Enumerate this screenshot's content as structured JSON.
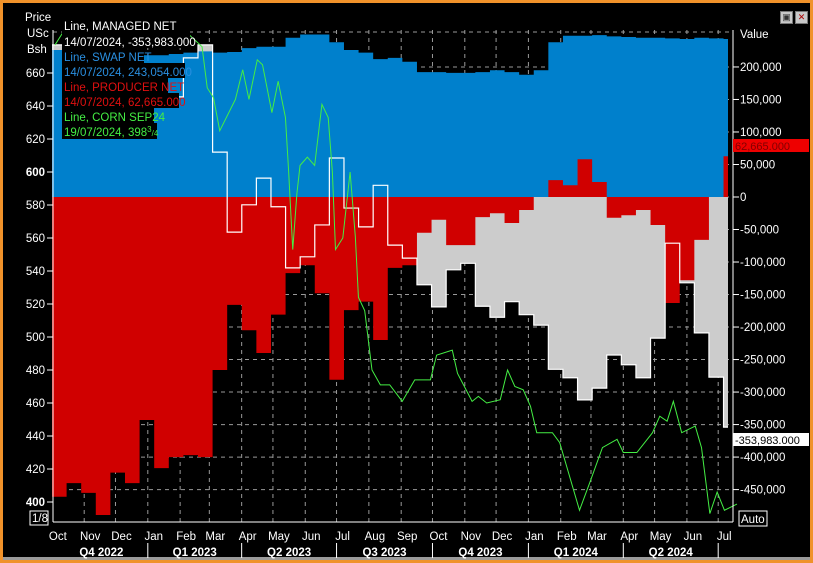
{
  "window": {
    "restore_icon": "restore-window-icon",
    "close_icon": "close-window-icon"
  },
  "legend": [
    {
      "label": "Line, MANAGED NET",
      "value": "14/07/2024, -353,983.000",
      "color": "#ffffff"
    },
    {
      "label": "Line, SWAP NET",
      "value": "14/07/2024, 243,054.000",
      "color": "#2a8fe0"
    },
    {
      "label": "Line, PRODUCER NET",
      "value": "14/07/2024, 62,665.000",
      "color": "#e01010"
    },
    {
      "label": "Line, CORN SEP24",
      "value": "19/07/2024, 398",
      "value_frac_num": "3",
      "value_frac_den": "4",
      "color": "#44ee44"
    }
  ],
  "left_axis": {
    "title_lines": [
      "Price",
      "USc",
      "Bsh"
    ],
    "scale_box": "1/8"
  },
  "right_axis": {
    "title": "Value",
    "auto_box": "Auto",
    "producer_last_label": "62,665.000",
    "managed_last_label": "-353,983.000"
  },
  "chart_data": {
    "type": "area",
    "title": "",
    "xlabel": "",
    "left_ylabel": "Price USc Bsh",
    "right_ylabel": "Value",
    "left_ylim": [
      395,
      690
    ],
    "right_ylim": [
      -500000,
      255000
    ],
    "x_range": [
      "2022-10-01",
      "2024-07-21"
    ],
    "grid": true,
    "legend_position": "top-left",
    "left_ticks": [
      "400",
      "420",
      "440",
      "460",
      "480",
      "500",
      "520",
      "540",
      "560",
      "580",
      "600",
      "620",
      "640",
      "660"
    ],
    "right_ticks": [
      {
        "v": 200000,
        "label": "200,000"
      },
      {
        "v": 150000,
        "label": "150,000"
      },
      {
        "v": 100000,
        "label": "100,000"
      },
      {
        "v": 50000,
        "label": "50,000"
      },
      {
        "v": 0,
        "label": "0"
      },
      {
        "v": -50000,
        "label": "-50,000"
      },
      {
        "v": -100000,
        "label": "-100,000"
      },
      {
        "v": -150000,
        "label": "-150,000"
      },
      {
        "v": -200000,
        "label": "-200,000"
      },
      {
        "v": -250000,
        "label": "-250,000"
      },
      {
        "v": -300000,
        "label": "-300,000"
      },
      {
        "v": -350000,
        "label": "-350,000"
      },
      {
        "v": -400000,
        "label": "-400,000"
      },
      {
        "v": -450000,
        "label": "-450,000"
      }
    ],
    "month_ticks": [
      {
        "d": "2022-10-01",
        "label": "Oct"
      },
      {
        "d": "2022-11-01",
        "label": "Nov"
      },
      {
        "d": "2022-12-01",
        "label": "Dec"
      },
      {
        "d": "2023-01-01",
        "label": "Jan"
      },
      {
        "d": "2023-02-01",
        "label": "Feb"
      },
      {
        "d": "2023-03-01",
        "label": "Mar"
      },
      {
        "d": "2023-04-01",
        "label": "Apr"
      },
      {
        "d": "2023-05-01",
        "label": "May"
      },
      {
        "d": "2023-06-01",
        "label": "Jun"
      },
      {
        "d": "2023-07-01",
        "label": "Jul"
      },
      {
        "d": "2023-08-01",
        "label": "Aug"
      },
      {
        "d": "2023-09-01",
        "label": "Sep"
      },
      {
        "d": "2023-10-01",
        "label": "Oct"
      },
      {
        "d": "2023-11-01",
        "label": "Nov"
      },
      {
        "d": "2023-12-01",
        "label": "Dec"
      },
      {
        "d": "2024-01-01",
        "label": "Jan"
      },
      {
        "d": "2024-02-01",
        "label": "Feb"
      },
      {
        "d": "2024-03-01",
        "label": "Mar"
      },
      {
        "d": "2024-04-01",
        "label": "Apr"
      },
      {
        "d": "2024-05-01",
        "label": "May"
      },
      {
        "d": "2024-06-01",
        "label": "Jun"
      },
      {
        "d": "2024-07-01",
        "label": "Jul"
      }
    ],
    "quarters": [
      {
        "start": "2022-10-01",
        "end": "2023-01-01",
        "label": "Q4 2022"
      },
      {
        "start": "2023-01-01",
        "end": "2023-04-01",
        "label": "Q1 2023"
      },
      {
        "start": "2023-04-01",
        "end": "2023-07-01",
        "label": "Q2 2023"
      },
      {
        "start": "2023-07-01",
        "end": "2023-10-01",
        "label": "Q3 2023"
      },
      {
        "start": "2023-10-01",
        "end": "2024-01-01",
        "label": "Q4 2023"
      },
      {
        "start": "2024-01-01",
        "end": "2024-04-01",
        "label": "Q1 2024"
      },
      {
        "start": "2024-04-01",
        "end": "2024-07-01",
        "label": "Q2 2024"
      }
    ],
    "positions_start": "2022-10-04",
    "positions_step_days": 14,
    "positions_units": "thousands of contracts",
    "series": [
      {
        "name": "MANAGED NET",
        "axis": "right",
        "style": "step-area",
        "color": "#ffffff",
        "fill": "#cccccc",
        "values": [
          234,
          229,
          226,
          218,
          211,
          195,
          180,
          157,
          154,
          214,
          234,
          69,
          -54,
          -12,
          29,
          -15,
          -109,
          -92,
          -43,
          60,
          -17,
          -46,
          18,
          -74,
          -94,
          -135,
          -169,
          -112,
          -102,
          -168,
          -185,
          -161,
          -181,
          -197,
          -265,
          -278,
          -312,
          -294,
          -243,
          -258,
          -278,
          -217,
          -71,
          -132,
          -209,
          -277,
          -353.983
        ]
      },
      {
        "name": "SWAP NET",
        "axis": "right",
        "style": "step-area",
        "color": "#0080cc",
        "values": [
          226,
          224,
          222,
          222,
          220,
          220,
          218,
          218,
          220,
          222,
          224,
          222,
          223,
          229,
          231,
          231,
          245,
          250,
          250,
          238,
          226,
          222,
          212,
          214,
          208,
          192,
          192,
          191,
          191,
          192,
          195,
          192,
          188,
          195,
          238,
          248,
          248,
          249,
          247,
          246,
          245,
          245,
          244,
          243,
          245,
          244,
          243.054
        ]
      },
      {
        "name": "PRODUCER NET",
        "axis": "right",
        "style": "step-area",
        "color": "#d00000",
        "values": [
          -461,
          -440,
          -455,
          -489,
          -424,
          -440,
          -343,
          -417,
          -400,
          -397,
          -400,
          -266,
          -166,
          -205,
          -240,
          -181,
          -117,
          -105,
          -148,
          -281,
          -174,
          -161,
          -220,
          -109,
          -105,
          -55,
          -35,
          -74,
          -74,
          -31,
          -25,
          -40,
          -20,
          0,
          26,
          18,
          58,
          23,
          -32,
          -28,
          -20,
          -43,
          -163,
          -128,
          -66,
          0,
          62.665
        ]
      },
      {
        "name": "CORN SEP24",
        "axis": "left",
        "style": "line",
        "color": "#44ee44",
        "points": [
          [
            "2022-10-04",
            677
          ],
          [
            "2022-10-11",
            684
          ],
          [
            "2022-12-05",
            680
          ],
          [
            "2023-01-29",
            684
          ],
          [
            "2023-02-10",
            683
          ],
          [
            "2023-02-22",
            676
          ],
          [
            "2023-02-27",
            651
          ],
          [
            "2023-03-05",
            645
          ],
          [
            "2023-03-11",
            625
          ],
          [
            "2023-03-26",
            644
          ],
          [
            "2023-04-02",
            662
          ],
          [
            "2023-04-08",
            644
          ],
          [
            "2023-04-16",
            668
          ],
          [
            "2023-04-21",
            665
          ],
          [
            "2023-04-30",
            636
          ],
          [
            "2023-05-06",
            655
          ],
          [
            "2023-05-13",
            633
          ],
          [
            "2023-05-16",
            601
          ],
          [
            "2023-05-20",
            553
          ],
          [
            "2023-05-24",
            587
          ],
          [
            "2023-05-27",
            604
          ],
          [
            "2023-06-03",
            609
          ],
          [
            "2023-06-10",
            604
          ],
          [
            "2023-06-17",
            641
          ],
          [
            "2023-06-23",
            633
          ],
          [
            "2023-06-27",
            600
          ],
          [
            "2023-06-30",
            553
          ],
          [
            "2023-07-07",
            560
          ],
          [
            "2023-07-14",
            600
          ],
          [
            "2023-07-19",
            561
          ],
          [
            "2023-07-22",
            524
          ],
          [
            "2023-07-28",
            516
          ],
          [
            "2023-08-04",
            480
          ],
          [
            "2023-08-12",
            471
          ],
          [
            "2023-08-21",
            471
          ],
          [
            "2023-09-02",
            461
          ],
          [
            "2023-09-14",
            474
          ],
          [
            "2023-09-29",
            474
          ],
          [
            "2023-10-05",
            489
          ],
          [
            "2023-10-20",
            492
          ],
          [
            "2023-10-25",
            478
          ],
          [
            "2023-11-08",
            461
          ],
          [
            "2023-11-14",
            464
          ],
          [
            "2023-11-22",
            460
          ],
          [
            "2023-12-05",
            462
          ],
          [
            "2023-12-12",
            480
          ],
          [
            "2023-12-19",
            470
          ],
          [
            "2023-12-27",
            468
          ],
          [
            "2024-01-03",
            458
          ],
          [
            "2024-01-09",
            442
          ],
          [
            "2024-01-24",
            442
          ],
          [
            "2024-01-31",
            436
          ],
          [
            "2024-02-19",
            395
          ],
          [
            "2024-02-29",
            412
          ],
          [
            "2024-03-12",
            433
          ],
          [
            "2024-03-26",
            438
          ],
          [
            "2024-04-01",
            430
          ],
          [
            "2024-04-14",
            430
          ],
          [
            "2024-04-29",
            442
          ],
          [
            "2024-05-06",
            452
          ],
          [
            "2024-05-13",
            449
          ],
          [
            "2024-05-19",
            461
          ],
          [
            "2024-05-27",
            442
          ],
          [
            "2024-06-09",
            446
          ],
          [
            "2024-06-15",
            433
          ],
          [
            "2024-06-23",
            393
          ],
          [
            "2024-06-30",
            406
          ],
          [
            "2024-07-07",
            395
          ],
          [
            "2024-07-19",
            398.75
          ]
        ]
      }
    ]
  }
}
